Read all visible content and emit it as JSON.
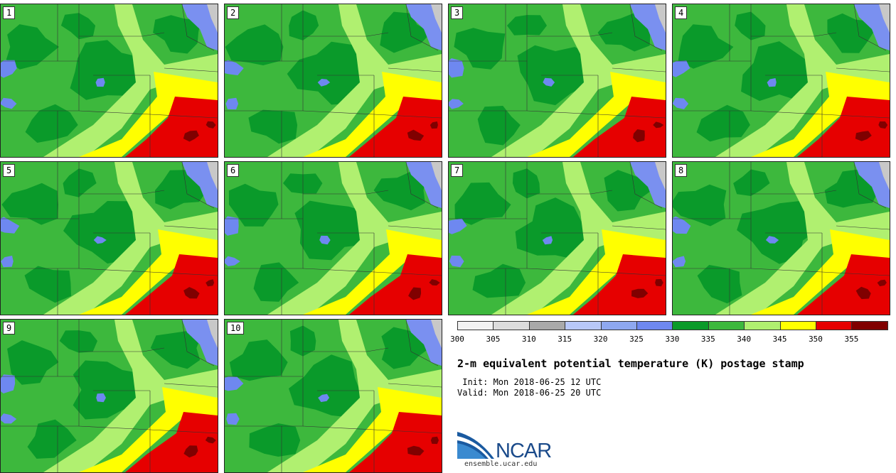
{
  "members": [
    {
      "label": "1"
    },
    {
      "label": "2"
    },
    {
      "label": "3"
    },
    {
      "label": "4"
    },
    {
      "label": "5"
    },
    {
      "label": "6"
    },
    {
      "label": "7"
    },
    {
      "label": "8"
    },
    {
      "label": "9"
    },
    {
      "label": "10"
    }
  ],
  "colorbar": {
    "colors": [
      "#f2f2f2",
      "#dcdcdc",
      "#a9a9a9",
      "#b8c8f8",
      "#8ea8f0",
      "#6e88f0",
      "#0a9a2a",
      "#3db83d",
      "#b0f070",
      "#ffff00",
      "#e60000",
      "#800000"
    ],
    "ticks": [
      "300",
      "305",
      "310",
      "315",
      "320",
      "325",
      "330",
      "335",
      "340",
      "345",
      "350",
      "355"
    ]
  },
  "title": "2-m equivalent potential temperature (K) postage stamp",
  "init": " Init: Mon 2018-06-25 12 UTC",
  "valid": "Valid: Mon 2018-06-25 20 UTC",
  "logo": {
    "name": "NCAR",
    "url": "ensemble.ucar.edu"
  }
}
